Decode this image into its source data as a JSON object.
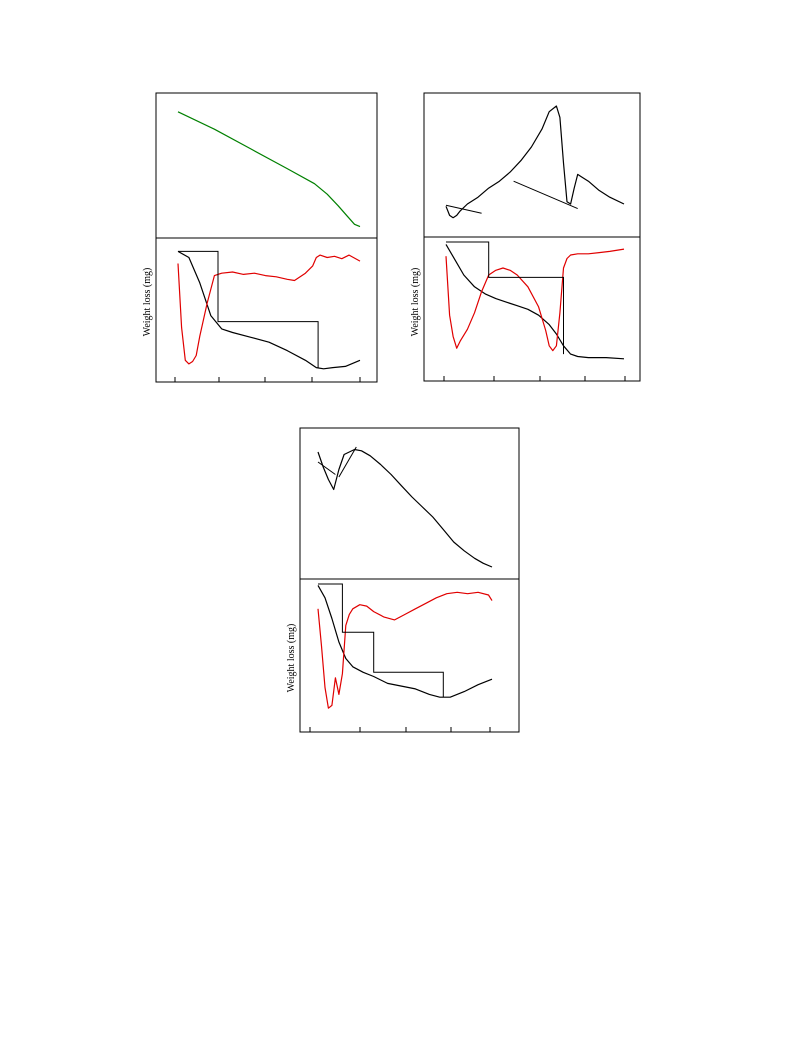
{
  "figure": {
    "ylabel": "Weight loss (mg)",
    "colors": {
      "dta": "#008000",
      "dtg": "#e00000",
      "tg": "#000000",
      "axis": "#000000"
    }
  },
  "chart_data": [
    {
      "type": "line",
      "panel": "top-left",
      "ylabel": "Weight loss (mg)",
      "x_ticks": 5,
      "upper": {
        "series": [
          {
            "role": "dta",
            "color": "#008000",
            "x": [
              0.0,
              0.2,
              0.4,
              0.6,
              0.75,
              0.82,
              0.88,
              0.93,
              0.97,
              1.0
            ],
            "y": [
              0.95,
              0.8,
              0.63,
              0.46,
              0.33,
              0.24,
              0.14,
              0.05,
              -0.02,
              -0.04
            ]
          }
        ]
      },
      "lower": {
        "series": [
          {
            "role": "tg",
            "color": "#000000",
            "x": [
              0.0,
              0.06,
              0.12,
              0.18,
              0.24,
              0.3,
              0.4,
              0.5,
              0.6,
              0.7,
              0.76,
              0.8,
              0.85,
              0.92,
              1.0
            ],
            "y": [
              0.98,
              0.93,
              0.72,
              0.45,
              0.34,
              0.31,
              0.27,
              0.23,
              0.16,
              0.08,
              0.02,
              0.01,
              0.02,
              0.03,
              0.08
            ]
          },
          {
            "role": "dtg",
            "color": "#e00000",
            "x": [
              0.0,
              0.02,
              0.04,
              0.06,
              0.08,
              0.1,
              0.12,
              0.16,
              0.2,
              0.24,
              0.3,
              0.36,
              0.42,
              0.48,
              0.54,
              0.6,
              0.64,
              0.7,
              0.74,
              0.76,
              0.78,
              0.82,
              0.86,
              0.9,
              0.94,
              1.0
            ],
            "y": [
              0.88,
              0.35,
              0.08,
              0.05,
              0.07,
              0.12,
              0.28,
              0.55,
              0.78,
              0.8,
              0.81,
              0.79,
              0.8,
              0.78,
              0.77,
              0.75,
              0.74,
              0.8,
              0.86,
              0.93,
              0.95,
              0.93,
              0.94,
              0.92,
              0.95,
              0.9
            ]
          }
        ],
        "steps_x": [
          0.0,
          0.22,
          0.22,
          0.77,
          0.77
        ],
        "steps_y": [
          0.98,
          0.98,
          0.4,
          0.4,
          0.02
        ]
      }
    },
    {
      "type": "line",
      "panel": "top-right",
      "ylabel": "Weight loss (mg)",
      "x_ticks": 5,
      "upper": {
        "series": [
          {
            "role": "dta",
            "color": "#000000",
            "x": [
              0.0,
              0.02,
              0.04,
              0.06,
              0.08,
              0.12,
              0.18,
              0.24,
              0.3,
              0.36,
              0.42,
              0.48,
              0.54,
              0.58,
              0.62,
              0.64,
              0.66,
              0.68,
              0.7,
              0.72,
              0.74,
              0.76,
              0.8,
              0.86,
              0.92,
              1.0
            ],
            "y": [
              0.12,
              0.04,
              0.02,
              0.04,
              0.08,
              0.14,
              0.2,
              0.28,
              0.34,
              0.42,
              0.52,
              0.64,
              0.8,
              0.95,
              1.0,
              0.9,
              0.5,
              0.16,
              0.14,
              0.28,
              0.4,
              0.38,
              0.34,
              0.26,
              0.2,
              0.14
            ]
          },
          {
            "role": "tangent",
            "color": "#000000",
            "x": [
              0.0,
              0.2
            ],
            "y": [
              0.13,
              0.06
            ]
          },
          {
            "role": "tangent",
            "color": "#000000",
            "x": [
              0.38,
              0.74
            ],
            "y": [
              0.34,
              0.1
            ]
          }
        ]
      },
      "lower": {
        "series": [
          {
            "role": "tg",
            "color": "#000000",
            "x": [
              0.0,
              0.05,
              0.1,
              0.16,
              0.22,
              0.28,
              0.34,
              0.4,
              0.46,
              0.52,
              0.58,
              0.62,
              0.66,
              0.7,
              0.74,
              0.8,
              0.9,
              1.0
            ],
            "y": [
              0.98,
              0.85,
              0.72,
              0.62,
              0.56,
              0.52,
              0.49,
              0.46,
              0.43,
              0.38,
              0.3,
              0.22,
              0.12,
              0.05,
              0.03,
              0.02,
              0.02,
              0.01
            ]
          },
          {
            "role": "dtg",
            "color": "#e00000",
            "x": [
              0.0,
              0.02,
              0.04,
              0.06,
              0.08,
              0.12,
              0.16,
              0.2,
              0.24,
              0.28,
              0.32,
              0.36,
              0.4,
              0.46,
              0.52,
              0.56,
              0.58,
              0.6,
              0.62,
              0.64,
              0.66,
              0.68,
              0.7,
              0.74,
              0.8,
              0.86,
              0.92,
              1.0
            ],
            "y": [
              0.88,
              0.38,
              0.2,
              0.1,
              0.16,
              0.26,
              0.4,
              0.58,
              0.72,
              0.76,
              0.78,
              0.76,
              0.72,
              0.62,
              0.45,
              0.25,
              0.12,
              0.08,
              0.12,
              0.4,
              0.78,
              0.86,
              0.89,
              0.9,
              0.9,
              0.91,
              0.92,
              0.94
            ]
          }
        ],
        "steps_x": [
          0.0,
          0.24,
          0.24,
          0.66,
          0.66
        ],
        "steps_y": [
          1.0,
          1.0,
          0.7,
          0.7,
          0.05
        ]
      }
    },
    {
      "type": "line",
      "panel": "bottom-center",
      "ylabel": "Weight loss (mg)",
      "x_ticks": 5,
      "upper": {
        "series": [
          {
            "role": "dta",
            "color": "#000000",
            "x": [
              0.0,
              0.03,
              0.06,
              0.09,
              0.12,
              0.15,
              0.18,
              0.21,
              0.25,
              0.3,
              0.36,
              0.42,
              0.48,
              0.54,
              0.6,
              0.66,
              0.72,
              0.78,
              0.84,
              0.9,
              0.95,
              1.0
            ],
            "y": [
              0.92,
              0.8,
              0.7,
              0.62,
              0.78,
              0.9,
              0.92,
              0.94,
              0.93,
              0.89,
              0.82,
              0.74,
              0.65,
              0.56,
              0.48,
              0.4,
              0.3,
              0.2,
              0.13,
              0.07,
              0.03,
              0.0
            ]
          },
          {
            "role": "tangent",
            "color": "#000000",
            "x": [
              0.0,
              0.1
            ],
            "y": [
              0.84,
              0.74
            ]
          },
          {
            "role": "tangent",
            "color": "#000000",
            "x": [
              0.12,
              0.22
            ],
            "y": [
              0.72,
              0.96
            ]
          }
        ]
      },
      "lower": {
        "series": [
          {
            "role": "tg",
            "color": "#000000",
            "x": [
              0.0,
              0.04,
              0.08,
              0.12,
              0.16,
              0.2,
              0.26,
              0.32,
              0.4,
              0.48,
              0.56,
              0.64,
              0.7,
              0.76,
              0.84,
              0.92,
              1.0
            ],
            "y": [
              0.99,
              0.9,
              0.75,
              0.58,
              0.46,
              0.4,
              0.36,
              0.33,
              0.28,
              0.26,
              0.24,
              0.2,
              0.18,
              0.18,
              0.22,
              0.27,
              0.31
            ]
          },
          {
            "role": "dtg",
            "color": "#e00000",
            "x": [
              0.0,
              0.02,
              0.04,
              0.06,
              0.08,
              0.1,
              0.12,
              0.14,
              0.16,
              0.18,
              0.2,
              0.24,
              0.28,
              0.32,
              0.38,
              0.44,
              0.5,
              0.56,
              0.62,
              0.68,
              0.74,
              0.8,
              0.86,
              0.92,
              0.98,
              1.0
            ],
            "y": [
              0.82,
              0.55,
              0.25,
              0.1,
              0.12,
              0.32,
              0.2,
              0.35,
              0.7,
              0.78,
              0.82,
              0.85,
              0.84,
              0.8,
              0.76,
              0.74,
              0.78,
              0.82,
              0.86,
              0.9,
              0.93,
              0.94,
              0.93,
              0.94,
              0.92,
              0.88
            ]
          }
        ],
        "steps_x": [
          0.0,
          0.14,
          0.14,
          0.32,
          0.32,
          0.72,
          0.72
        ],
        "steps_y": [
          1.0,
          1.0,
          0.65,
          0.65,
          0.36,
          0.36,
          0.18
        ]
      }
    }
  ]
}
